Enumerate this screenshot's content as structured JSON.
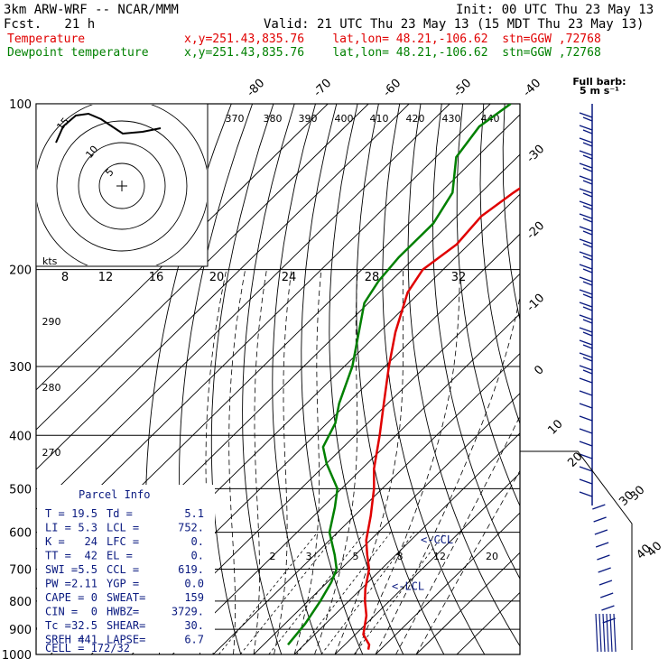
{
  "header": {
    "model": "3km ARW-WRF -- NCAR/MMM",
    "init": "Init: 00 UTC Thu 23 May 13",
    "fcst": "Fcst.   21 h",
    "valid": "Valid: 21 UTC Thu 23 May 13 (15 MDT Thu 23 May 13)",
    "temp_label": "Temperature",
    "temp_loc": "x,y=251.43,835.76    lat,lon= 48.21,-106.62  stn=GGW ,72768",
    "dew_label": "Dewpoint temperature",
    "dew_loc": "x,y=251.43,835.76    lat,lon= 48.21,-106.62  stn=GGW ,72768"
  },
  "colors": {
    "temperature": "#e00000",
    "dewpoint": "#008000",
    "parcel_text": "#0a1a80",
    "wind_barbs": "#0a1a80"
  },
  "barb_legend": {
    "title": "Full barb:",
    "value": "5 m s⁻¹"
  },
  "chart_data": {
    "type": "skew-t",
    "pressure_axis_labels": [
      "100",
      "200",
      "300",
      "400",
      "500",
      "600",
      "700",
      "800",
      "900",
      "1000"
    ],
    "isotherm_labels": [
      "-80",
      "-70",
      "-60",
      "-50",
      "-40",
      "-30",
      "-20",
      "-10",
      "0",
      "10",
      "20",
      "30",
      "40"
    ],
    "theta_labels": [
      "370",
      "380",
      "390",
      "400",
      "410",
      "420",
      "430",
      "440",
      "290",
      "280",
      "270"
    ],
    "mixing_ratio_labels": [
      "2",
      "3",
      "5",
      "8",
      "12",
      "20"
    ],
    "temperature_profile": [
      {
        "p": 980,
        "t": 27
      },
      {
        "p": 960,
        "t": 26
      },
      {
        "p": 920,
        "t": 22
      },
      {
        "p": 850,
        "t": 18
      },
      {
        "p": 800,
        "t": 14
      },
      {
        "p": 760,
        "t": 11
      },
      {
        "p": 700,
        "t": 7
      },
      {
        "p": 660,
        "t": 3
      },
      {
        "p": 620,
        "t": -1
      },
      {
        "p": 560,
        "t": -6
      },
      {
        "p": 500,
        "t": -12
      },
      {
        "p": 460,
        "t": -17
      },
      {
        "p": 400,
        "t": -24
      },
      {
        "p": 350,
        "t": -31
      },
      {
        "p": 300,
        "t": -39
      },
      {
        "p": 260,
        "t": -46
      },
      {
        "p": 220,
        "t": -53
      },
      {
        "p": 200,
        "t": -55
      },
      {
        "p": 180,
        "t": -53
      },
      {
        "p": 160,
        "t": -54
      },
      {
        "p": 145,
        "t": -52
      },
      {
        "p": 135,
        "t": -50
      },
      {
        "p": 120,
        "t": -46
      },
      {
        "p": 105,
        "t": -45
      }
    ],
    "dewpoint_profile": [
      {
        "p": 960,
        "t": 6
      },
      {
        "p": 880,
        "t": 5
      },
      {
        "p": 800,
        "t": 3
      },
      {
        "p": 740,
        "t": 1
      },
      {
        "p": 700,
        "t": -1
      },
      {
        "p": 660,
        "t": -5
      },
      {
        "p": 600,
        "t": -12
      },
      {
        "p": 540,
        "t": -17
      },
      {
        "p": 500,
        "t": -21
      },
      {
        "p": 450,
        "t": -30
      },
      {
        "p": 420,
        "t": -35
      },
      {
        "p": 380,
        "t": -38
      },
      {
        "p": 350,
        "t": -42
      },
      {
        "p": 300,
        "t": -48
      },
      {
        "p": 260,
        "t": -55
      },
      {
        "p": 230,
        "t": -61
      },
      {
        "p": 210,
        "t": -63
      },
      {
        "p": 190,
        "t": -64
      },
      {
        "p": 165,
        "t": -64
      },
      {
        "p": 145,
        "t": -67
      },
      {
        "p": 125,
        "t": -75
      },
      {
        "p": 110,
        "t": -77
      },
      {
        "p": 100,
        "t": -75
      }
    ],
    "lcl_markers": [
      {
        "label": "<-CCL",
        "p": 619
      },
      {
        "label": "<-LCL",
        "p": 752
      }
    ],
    "hodograph": {
      "units": "kts",
      "ring_labels": [
        "5",
        "10",
        "15"
      ],
      "speed_axis_labels": [
        "8",
        "12",
        "16",
        "20",
        "24",
        "28",
        "32"
      ]
    },
    "wind_profile_labels": [
      "30",
      "40"
    ]
  },
  "parcel_info": {
    "title": "Parcel Info",
    "rows": [
      [
        "T  =",
        "19.5",
        "Td =",
        "5.1"
      ],
      [
        "LI =",
        "5.3",
        "LCL =",
        "752."
      ],
      [
        "K  =",
        "24",
        "LFC =",
        "0."
      ],
      [
        "TT =",
        "42",
        "EL  =",
        "0."
      ],
      [
        "SWI =",
        "5.5",
        "CCL =",
        "619."
      ],
      [
        "PW =",
        "2.11",
        "YGP =",
        "0.0"
      ],
      [
        "CAPE =",
        "0",
        "SWEAT=",
        "159"
      ],
      [
        "CIN =",
        "0",
        "HWBZ=",
        "3729."
      ],
      [
        "Tc =",
        "32.5",
        "SHEAR=",
        "30."
      ],
      [
        "SREH =",
        "441",
        "LAPSE=",
        "6.7"
      ]
    ],
    "cell": "CELL = 172/32"
  }
}
